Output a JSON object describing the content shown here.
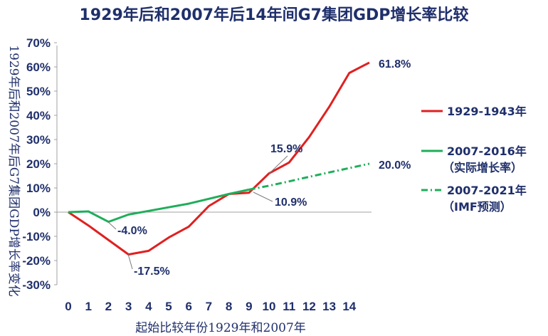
{
  "chart_data": {
    "type": "line",
    "title": "1929年后和2007年后14年间G7集团GDP增长率比较",
    "xlabel": "起始比较年份1929年和2007年",
    "ylabel": "1929年后和2007年后G7集团GDP增长率变化",
    "x": [
      0,
      1,
      2,
      3,
      4,
      5,
      6,
      7,
      8,
      9,
      10,
      11,
      12,
      13,
      14,
      15
    ],
    "xticks": [
      "0",
      "1",
      "2",
      "3",
      "4",
      "5",
      "6",
      "7",
      "8",
      "9",
      "10",
      "11",
      "12",
      "13",
      "14"
    ],
    "yticks": [
      "70%",
      "60%",
      "50%",
      "40%",
      "30%",
      "20%",
      "10%",
      "0%",
      "-10%",
      "-20%",
      "-30%"
    ],
    "ylim": [
      -30,
      70
    ],
    "series": [
      {
        "name": "1929-1943年",
        "color": "#e02020",
        "dash": "solid",
        "x": [
          0,
          1,
          2,
          3,
          4,
          5,
          6,
          7,
          8,
          9,
          10,
          11,
          12,
          13,
          14,
          15
        ],
        "values": [
          0,
          -5.5,
          -11.5,
          -17.5,
          -16,
          -10.5,
          -6,
          2.5,
          7.5,
          8,
          16,
          20.5,
          31,
          43.5,
          57.5,
          61.8
        ]
      },
      {
        "name": "2007-2016年",
        "legend_sub": "（实际增长率）",
        "color": "#1fae5a",
        "dash": "solid",
        "x": [
          0,
          1,
          2,
          3,
          4,
          5,
          6,
          7,
          8,
          9
        ],
        "values": [
          0,
          0.3,
          -4.0,
          -1.0,
          0.5,
          2,
          3.5,
          5.5,
          7.5,
          9.3
        ]
      },
      {
        "name": "2007-2021年",
        "legend_sub": "（IMF预测）",
        "color": "#1fae5a",
        "dash": "dashdot",
        "x": [
          9,
          10,
          11,
          12,
          13,
          14,
          15
        ],
        "values": [
          9.3,
          10.9,
          12.7,
          14.6,
          16.4,
          18.2,
          20.0
        ]
      }
    ],
    "annotations": [
      {
        "text": "61.8%"
      },
      {
        "text": "15.9%"
      },
      {
        "text": "20.0%"
      },
      {
        "text": "10.9%"
      },
      {
        "text": "-4.0%"
      },
      {
        "text": "-17.5%"
      }
    ]
  }
}
